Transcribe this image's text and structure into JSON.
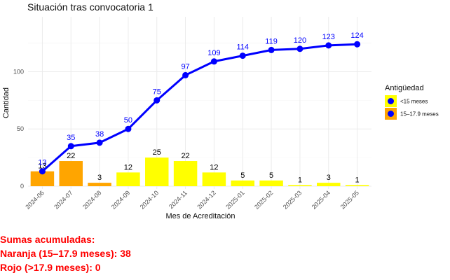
{
  "chart_data": {
    "type": "bar+line",
    "title": "Situación tras convocatoria 1",
    "xlabel": "Mes de Acreditación",
    "ylabel": "Cantidad",
    "ylim": [
      0,
      148
    ],
    "yticks": [
      0,
      50,
      100
    ],
    "grid": true,
    "categories": [
      "2024-06",
      "2024-07",
      "2024-08",
      "2024-09",
      "2024-10",
      "2024-11",
      "2024-12",
      "2025-01",
      "2025-02",
      "2025-03",
      "2025-04",
      "2025-05"
    ],
    "bars": {
      "values": [
        13,
        22,
        3,
        12,
        25,
        22,
        12,
        5,
        5,
        1,
        3,
        1
      ],
      "groups": [
        "15-17.9",
        "15-17.9",
        "15-17.9",
        "<15",
        "<15",
        "<15",
        "<15",
        "<15",
        "<15",
        "<15",
        "<15",
        "<15"
      ]
    },
    "line": {
      "values": [
        13,
        35,
        38,
        50,
        75,
        97,
        109,
        114,
        119,
        120,
        123,
        124
      ],
      "color": "#0000ff"
    },
    "legend": {
      "title": "Antigüedad",
      "placement": "right",
      "entries": [
        {
          "key": "<15",
          "label": "<15 meses",
          "color": "#ffff00"
        },
        {
          "key": "15-17.9",
          "label": "15–17.9 meses",
          "color": "#ffa500"
        }
      ]
    }
  },
  "summary": {
    "heading": "Sumas acumuladas:",
    "orange": "Naranja (15–17.9 meses): 38",
    "red": "Rojo (>17.9 meses): 0",
    "color": "#ff0000"
  }
}
